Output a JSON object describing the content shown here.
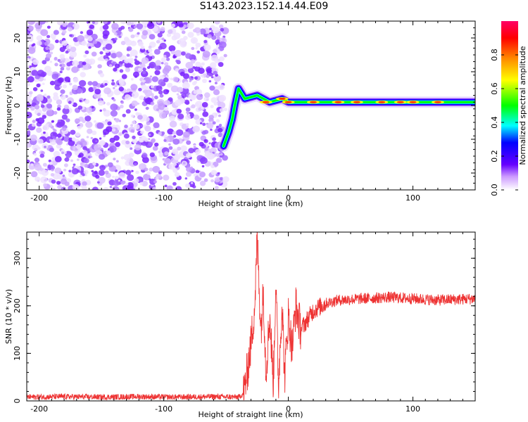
{
  "title": "S143.2023.152.14.44.E09",
  "chart_data": [
    {
      "type": "heatmap",
      "xlabel": "Height of straight line (km)",
      "ylabel": "Frequency (Hz)",
      "xlim": [
        -210,
        150
      ],
      "ylim": [
        -25,
        25
      ],
      "x_ticks": [
        -200,
        -100,
        0,
        100
      ],
      "y_ticks": [
        -20,
        -10,
        0,
        10,
        20
      ],
      "colorbar": {
        "label": "Normalized spectral amplitude",
        "range": [
          0,
          1
        ],
        "ticks": [
          0.0,
          0.2,
          0.4,
          0.6,
          0.8
        ],
        "colors": [
          "#ffffff",
          "#b36bff",
          "#6600ff",
          "#0000ff",
          "#00ffff",
          "#00ff00",
          "#ffff00",
          "#ff8800",
          "#ff0000",
          "#ff0066"
        ]
      },
      "noise_region": {
        "x": [
          -210,
          -50
        ],
        "freq": [
          -25,
          25
        ],
        "amplitude": "~0.1-0.25"
      },
      "ridge": [
        {
          "x": -52,
          "freq": -12
        },
        {
          "x": -48,
          "freq": -8
        },
        {
          "x": -45,
          "freq": -4
        },
        {
          "x": -43,
          "freq": 0
        },
        {
          "x": -40,
          "freq": 5
        },
        {
          "x": -35,
          "freq": 2
        },
        {
          "x": -25,
          "freq": 3
        },
        {
          "x": -15,
          "freq": 1
        },
        {
          "x": -5,
          "freq": 2
        },
        {
          "x": 0,
          "freq": 1
        },
        {
          "x": 50,
          "freq": 1
        },
        {
          "x": 100,
          "freq": 1
        },
        {
          "x": 150,
          "freq": 1
        }
      ]
    },
    {
      "type": "line",
      "xlabel": "Height of straight line (km)",
      "ylabel": "SNR (10 * v/v)",
      "xlim": [
        -210,
        150
      ],
      "ylim": [
        0,
        355
      ],
      "x_ticks": [
        -200,
        -100,
        0,
        100
      ],
      "y_ticks": [
        0,
        100,
        200,
        300
      ],
      "series": [
        {
          "color": "#ee3333",
          "x": [
            -210,
            -180,
            -150,
            -120,
            -90,
            -60,
            -40,
            -36,
            -33,
            -30,
            -27,
            -25,
            -22,
            -20,
            -18,
            -15,
            -12,
            -10,
            -8,
            -5,
            -3,
            0,
            3,
            6,
            10,
            15,
            20,
            30,
            40,
            60,
            80,
            100,
            120,
            150
          ],
          "y": [
            8,
            9,
            8,
            9,
            8,
            9,
            8,
            15,
            60,
            120,
            200,
            340,
            150,
            230,
            60,
            180,
            40,
            260,
            30,
            210,
            50,
            180,
            110,
            200,
            150,
            170,
            190,
            205,
            212,
            215,
            218,
            215,
            212,
            215
          ]
        }
      ]
    }
  ]
}
